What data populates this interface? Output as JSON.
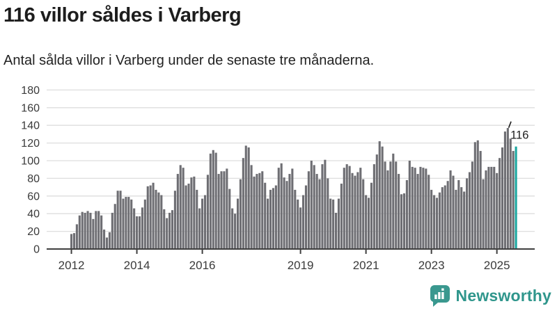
{
  "header": {
    "title": "116 villor såldes i Varberg",
    "subtitle": "Antal sålda villor i Varberg under de senaste tre månaderna."
  },
  "chart_data": {
    "type": "bar",
    "title": "116 villor såldes i Varberg",
    "subtitle": "Antal sålda villor i Varberg under de senaste tre månaderna.",
    "frequency": "monthly",
    "x_start": "2012-01",
    "x_end": "2025-08",
    "start_year": 2012,
    "values": [
      17,
      18,
      28,
      38,
      42,
      41,
      43,
      41,
      34,
      43,
      43,
      38,
      22,
      13,
      19,
      41,
      51,
      66,
      66,
      57,
      59,
      59,
      56,
      46,
      37,
      37,
      47,
      56,
      71,
      72,
      75,
      67,
      64,
      61,
      45,
      35,
      41,
      44,
      66,
      85,
      95,
      92,
      72,
      74,
      81,
      82,
      67,
      46,
      57,
      61,
      84,
      108,
      112,
      109,
      85,
      88,
      88,
      91,
      68,
      46,
      40,
      57,
      79,
      103,
      117,
      115,
      95,
      82,
      85,
      86,
      88,
      75,
      57,
      67,
      69,
      72,
      92,
      97,
      81,
      77,
      85,
      91,
      67,
      56,
      47,
      61,
      72,
      88,
      100,
      95,
      85,
      79,
      96,
      101,
      80,
      57,
      56,
      41,
      57,
      74,
      92,
      96,
      94,
      86,
      83,
      87,
      92,
      79,
      61,
      58,
      75,
      96,
      107,
      122,
      116,
      99,
      89,
      99,
      108,
      99,
      85,
      62,
      63,
      78,
      100,
      93,
      92,
      85,
      93,
      92,
      91,
      84,
      67,
      61,
      58,
      64,
      70,
      72,
      77,
      89,
      83,
      67,
      78,
      70,
      65,
      80,
      87,
      99,
      121,
      123,
      111,
      79,
      89,
      93,
      93,
      93,
      86,
      103,
      115,
      133,
      137,
      125,
      111,
      116
    ],
    "highlight_index": 163,
    "highlight_value": 116,
    "annotation": {
      "label": "116"
    },
    "y_ticks": [
      0,
      20,
      40,
      60,
      80,
      100,
      120,
      140,
      160,
      180
    ],
    "x_tick_years": [
      2012,
      2014,
      2016,
      2019,
      2021,
      2023,
      2025
    ],
    "ylim": [
      0,
      180
    ],
    "xlabel": "",
    "ylabel": "",
    "grid": true,
    "legend": "none",
    "bar_color": "#6e6e73",
    "highlight_color": "#1ba7a0",
    "grid_color": "#dedede",
    "axis_color": "#3f3f3f",
    "tick_label_color": "#3a3a3a",
    "annotation_color": "#1d1d1d"
  },
  "footer": {
    "brand": "Newsworthy",
    "logo_icon": "bar-chart-speech-bubble-icon",
    "brand_color": "#2f968c",
    "icon_color": "#3a988f"
  }
}
